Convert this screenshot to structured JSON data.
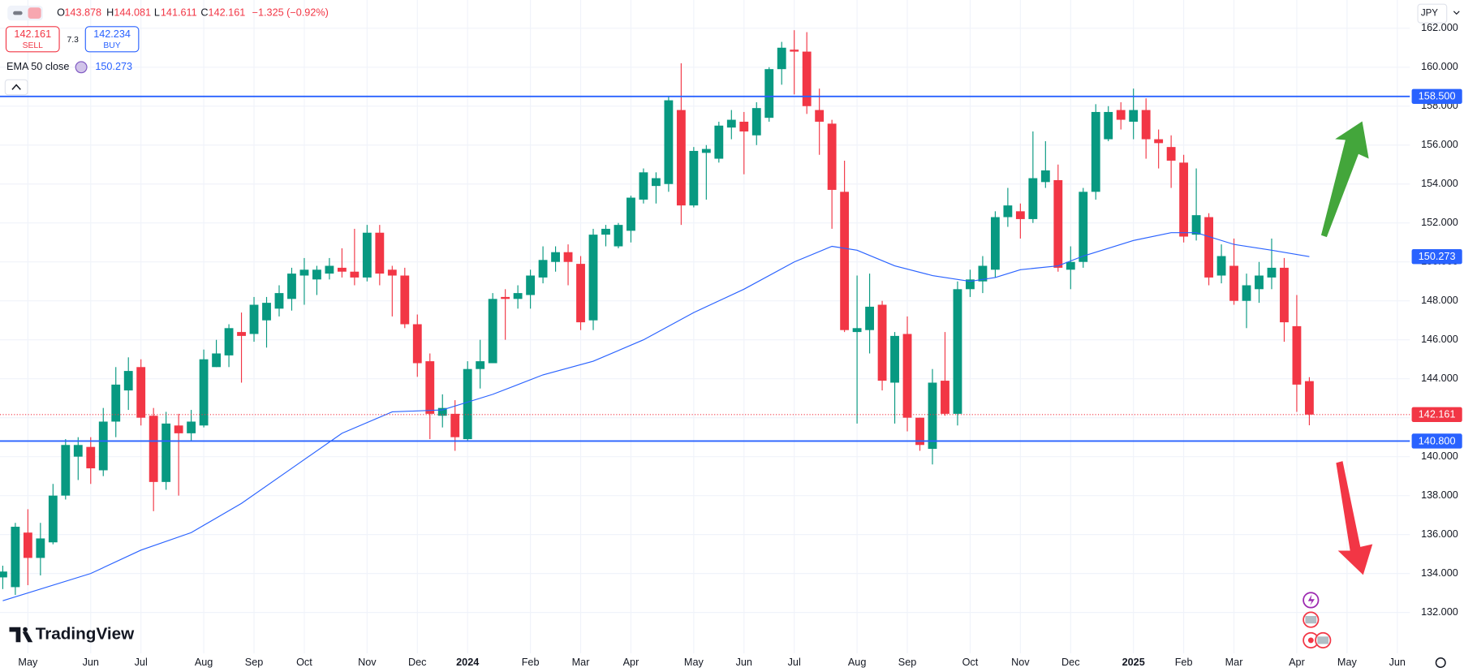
{
  "header": {
    "o_label": "O",
    "h_label": "H",
    "l_label": "L",
    "c_label": "C",
    "change": "−1.325 (−0.92%)",
    "sell_price": "142.161",
    "sell": "SELL",
    "spread": "7.3",
    "buy_price": "142.234",
    "buy": "BUY"
  },
  "watermark": "TradingView",
  "chart_data": {
    "type": "candlestick",
    "currency": "JPY",
    "up_color": "#089981",
    "down_color": "#f23645",
    "grid": true,
    "xlim": [
      -0.22,
      112
    ],
    "ylim": [
      129.9,
      163.45
    ],
    "yticks": [
      {
        "value": 132,
        "label": "132.000"
      },
      {
        "value": 134,
        "label": "134.000"
      },
      {
        "value": 136,
        "label": "136.000"
      },
      {
        "value": 138,
        "label": "138.000"
      },
      {
        "value": 140,
        "label": "140.000"
      },
      {
        "value": 142,
        "label": "142.000"
      },
      {
        "value": 144,
        "label": "144.000"
      },
      {
        "value": 146,
        "label": "146.000"
      },
      {
        "value": 148,
        "label": "148.000"
      },
      {
        "value": 150,
        "label": "150.000"
      },
      {
        "value": 152,
        "label": "152.000"
      },
      {
        "value": 154,
        "label": "154.000"
      },
      {
        "value": 156,
        "label": "156.000"
      },
      {
        "value": 158,
        "label": "158.000"
      },
      {
        "value": 160,
        "label": "160.000"
      },
      {
        "value": 162,
        "label": "162.000"
      }
    ],
    "xticks": [
      {
        "value": 2,
        "label": "May"
      },
      {
        "value": 7,
        "label": "Jun"
      },
      {
        "value": 11,
        "label": "Jul"
      },
      {
        "value": 16,
        "label": "Aug"
      },
      {
        "value": 20,
        "label": "Sep"
      },
      {
        "value": 24,
        "label": "Oct"
      },
      {
        "value": 29,
        "label": "Nov"
      },
      {
        "value": 33,
        "label": "Dec"
      },
      {
        "value": 37,
        "label": "2024"
      },
      {
        "value": 42,
        "label": "Feb"
      },
      {
        "value": 46,
        "label": "Mar"
      },
      {
        "value": 50,
        "label": "Apr"
      },
      {
        "value": 55,
        "label": "May"
      },
      {
        "value": 59,
        "label": "Jun"
      },
      {
        "value": 63,
        "label": "Jul"
      },
      {
        "value": 68,
        "label": "Aug"
      },
      {
        "value": 72,
        "label": "Sep"
      },
      {
        "value": 77,
        "label": "Oct"
      },
      {
        "value": 81,
        "label": "Nov"
      },
      {
        "value": 85,
        "label": "Dec"
      },
      {
        "value": 90,
        "label": "2025"
      },
      {
        "value": 94,
        "label": "Feb"
      },
      {
        "value": 98,
        "label": "Mar"
      },
      {
        "value": 103,
        "label": "Apr"
      },
      {
        "value": 107,
        "label": "May"
      },
      {
        "value": 111,
        "label": "Jun"
      }
    ],
    "open": [
      133.8,
      133.3,
      136.1,
      134.8,
      135.6,
      138.0,
      140.0,
      140.5,
      139.3,
      141.8,
      143.4,
      144.6,
      142.1,
      138.7,
      141.6,
      141.2,
      141.6,
      144.6,
      145.2,
      146.4,
      146.3,
      147.0,
      147.6,
      148.1,
      149.3,
      149.1,
      149.4,
      149.7,
      149.5,
      149.2,
      151.5,
      149.6,
      149.3,
      146.8,
      144.9,
      142.1,
      142.2,
      140.9,
      144.5,
      144.8,
      148.2,
      148.1,
      148.3,
      149.2,
      150.0,
      150.5,
      149.9,
      147.0,
      151.4,
      150.8,
      151.6,
      153.2,
      153.9,
      154.0,
      157.8,
      152.9,
      155.6,
      155.3,
      156.9,
      157.2,
      156.5,
      157.4,
      159.9,
      160.9,
      160.8,
      157.8,
      157.1,
      153.6,
      146.4,
      146.5,
      147.8,
      143.8,
      146.3,
      142.0,
      140.4,
      143.9,
      142.2,
      148.6,
      149.0,
      149.6,
      152.3,
      152.6,
      152.2,
      154.1,
      154.2,
      149.6,
      150.0,
      153.6,
      156.3,
      157.8,
      157.2,
      157.8,
      156.3,
      155.9,
      155.1,
      151.4,
      152.3,
      149.3,
      149.8,
      148.0,
      148.6,
      149.2,
      149.7,
      146.7,
      143.878
    ],
    "high": [
      134.4,
      136.6,
      137.3,
      136.6,
      138.6,
      140.9,
      141.0,
      141.0,
      142.5,
      144.6,
      145.1,
      145.0,
      142.5,
      142.3,
      142.2,
      142.4,
      145.5,
      146.0,
      146.8,
      147.4,
      148.2,
      148.2,
      148.8,
      149.7,
      150.2,
      149.8,
      150.2,
      150.7,
      151.7,
      151.9,
      151.9,
      149.8,
      149.7,
      147.3,
      145.3,
      143.2,
      142.9,
      144.9,
      146.0,
      148.4,
      148.6,
      148.8,
      149.6,
      150.8,
      150.8,
      150.9,
      150.3,
      151.7,
      151.9,
      152.0,
      153.4,
      154.8,
      154.6,
      158.5,
      160.2,
      155.9,
      156.0,
      157.2,
      157.8,
      157.7,
      158.2,
      160.0,
      161.3,
      161.9,
      161.8,
      158.9,
      157.3,
      155.2,
      149.3,
      149.4,
      148.0,
      146.4,
      147.2,
      142.0,
      144.5,
      146.4,
      149.0,
      149.6,
      150.3,
      152.6,
      153.8,
      153.0,
      156.7,
      156.2,
      155.0,
      150.8,
      153.8,
      158.1,
      158.0,
      158.2,
      158.9,
      158.4,
      156.8,
      156.5,
      155.5,
      154.8,
      152.5,
      150.9,
      151.2,
      149.4,
      150.0,
      151.2,
      150.2,
      148.3,
      144.081
    ],
    "low": [
      133.2,
      132.9,
      133.4,
      133.9,
      135.5,
      137.8,
      138.8,
      138.6,
      139.0,
      141.0,
      142.4,
      141.6,
      137.2,
      138.3,
      138.0,
      140.8,
      141.5,
      144.6,
      144.6,
      143.8,
      145.9,
      145.6,
      147.2,
      147.5,
      147.8,
      148.3,
      149.1,
      149.2,
      148.8,
      149.0,
      148.8,
      147.2,
      146.6,
      144.1,
      140.9,
      141.5,
      140.3,
      140.8,
      143.5,
      144.8,
      146.0,
      147.6,
      147.6,
      148.9,
      149.5,
      148.8,
      146.5,
      146.5,
      150.8,
      150.7,
      151.0,
      153.0,
      153.0,
      153.6,
      151.9,
      152.8,
      153.2,
      155.1,
      156.3,
      154.5,
      156.0,
      157.2,
      159.1,
      158.6,
      157.6,
      155.5,
      151.7,
      146.4,
      141.7,
      145.3,
      143.4,
      141.7,
      141.3,
      140.3,
      139.6,
      142.1,
      141.6,
      148.2,
      148.4,
      149.2,
      151.8,
      151.2,
      152.0,
      153.8,
      149.5,
      148.6,
      149.7,
      153.2,
      156.2,
      156.8,
      156.3,
      155.3,
      154.8,
      153.8,
      151.0,
      151.1,
      148.8,
      148.9,
      147.8,
      146.6,
      147.9,
      148.6,
      145.9,
      142.3,
      141.611
    ],
    "close": [
      134.1,
      136.4,
      134.8,
      135.8,
      138.0,
      140.6,
      140.6,
      139.4,
      141.8,
      143.7,
      144.4,
      142.0,
      138.7,
      141.7,
      141.2,
      141.8,
      145.0,
      145.3,
      146.6,
      146.2,
      147.8,
      147.9,
      148.4,
      149.4,
      149.6,
      149.6,
      149.8,
      149.5,
      149.2,
      151.5,
      149.4,
      149.3,
      146.8,
      144.8,
      142.2,
      142.5,
      141.0,
      144.5,
      144.9,
      148.1,
      148.1,
      148.4,
      149.3,
      150.1,
      150.5,
      150.0,
      146.9,
      151.4,
      151.7,
      151.9,
      153.3,
      154.6,
      154.3,
      158.3,
      152.9,
      155.7,
      155.8,
      157.0,
      157.3,
      156.7,
      157.9,
      159.9,
      161.0,
      160.8,
      158.0,
      157.2,
      153.7,
      146.5,
      146.6,
      147.7,
      143.9,
      146.2,
      142.0,
      140.6,
      143.8,
      142.2,
      148.6,
      149.1,
      149.8,
      152.3,
      152.9,
      152.2,
      154.3,
      154.7,
      149.7,
      150.0,
      153.6,
      157.7,
      157.7,
      157.3,
      157.8,
      156.3,
      156.1,
      155.2,
      151.3,
      152.4,
      149.2,
      150.3,
      148.0,
      148.8,
      149.3,
      149.7,
      146.9,
      143.7,
      142.161
    ],
    "ema": {
      "name": "EMA 50 close",
      "color": "#2962ff",
      "x": [
        0,
        7,
        11,
        15,
        19,
        23,
        27,
        31,
        35,
        39,
        43,
        47,
        51,
        55,
        59,
        63,
        66,
        68,
        71,
        74,
        77,
        79,
        81,
        84,
        86,
        90,
        93,
        95,
        98,
        101,
        104
      ],
      "values": [
        132.6,
        134.0,
        135.2,
        136.1,
        137.6,
        139.4,
        141.2,
        142.3,
        142.4,
        143.2,
        144.2,
        144.9,
        146.0,
        147.4,
        148.6,
        150.0,
        150.8,
        150.6,
        149.8,
        149.3,
        149.0,
        149.2,
        149.6,
        149.8,
        150.3,
        151.1,
        151.5,
        151.5,
        150.9,
        150.6,
        150.273
      ]
    },
    "hline_color": "#2962ff",
    "hlines": [
      {
        "value": 158.5,
        "label": "158.500"
      },
      {
        "value": 140.8,
        "label": "140.800"
      }
    ]
  }
}
